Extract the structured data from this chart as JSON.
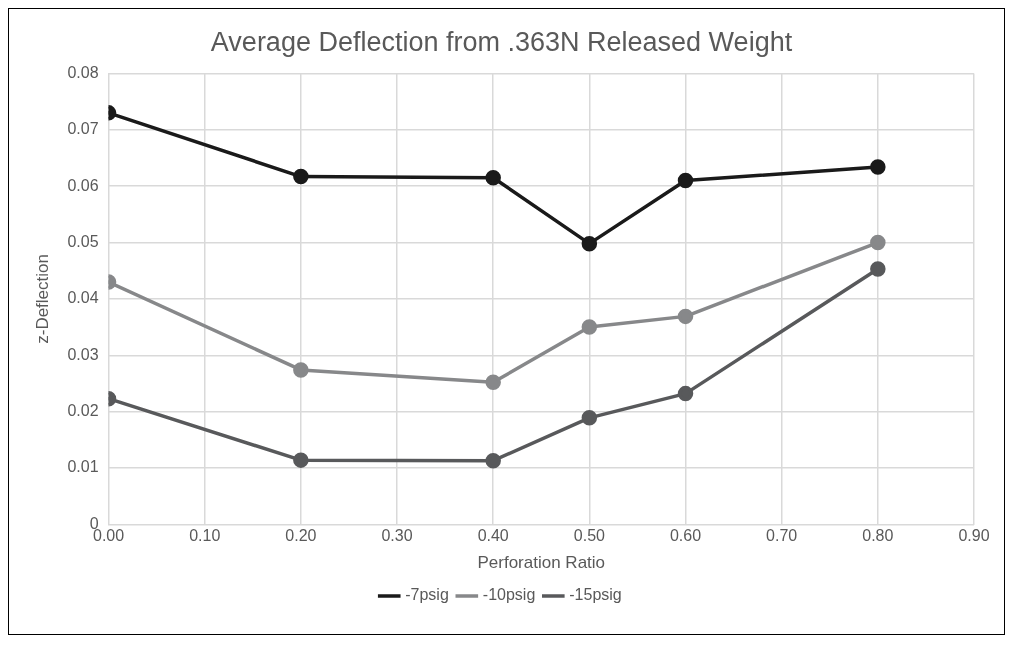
{
  "chart_data": {
    "type": "line",
    "title": "Average Deflection from .363N Released Weight",
    "xlabel": "Perforation Ratio",
    "ylabel": "z-Deflection",
    "x": [
      0,
      0.2,
      0.4,
      0.5,
      0.6,
      0.8
    ],
    "series": [
      {
        "name": "-7psig",
        "color": "#1a1a1a",
        "values": [
          0.073,
          0.0617,
          0.0615,
          0.0498,
          0.061,
          0.0634
        ]
      },
      {
        "name": "-10psig",
        "color": "#87888a",
        "values": [
          0.043,
          0.0274,
          0.0252,
          0.035,
          0.0369,
          0.05
        ]
      },
      {
        "name": "-15psig",
        "color": "#58595b",
        "values": [
          0.0223,
          0.0114,
          0.0113,
          0.0189,
          0.0232,
          0.0453
        ]
      }
    ],
    "xlim": [
      0,
      0.9
    ],
    "xticks": [
      {
        "value": 0,
        "label": "0.00"
      },
      {
        "value": 0.1,
        "label": "0.10"
      },
      {
        "value": 0.2,
        "label": "0.20"
      },
      {
        "value": 0.3,
        "label": "0.30"
      },
      {
        "value": 0.4,
        "label": "0.40"
      },
      {
        "value": 0.5,
        "label": "0.50"
      },
      {
        "value": 0.6,
        "label": "0.60"
      },
      {
        "value": 0.7,
        "label": "0.70"
      },
      {
        "value": 0.8,
        "label": "0.80"
      },
      {
        "value": 0.9,
        "label": "0.90"
      }
    ],
    "ylim": [
      0,
      0.08
    ],
    "yticks": [
      0,
      0.01,
      0.02,
      0.03,
      0.04,
      0.05,
      0.06,
      0.07,
      0.08
    ],
    "grid": true,
    "legend": "bottom",
    "marker": "circle",
    "line_style": "solid"
  }
}
